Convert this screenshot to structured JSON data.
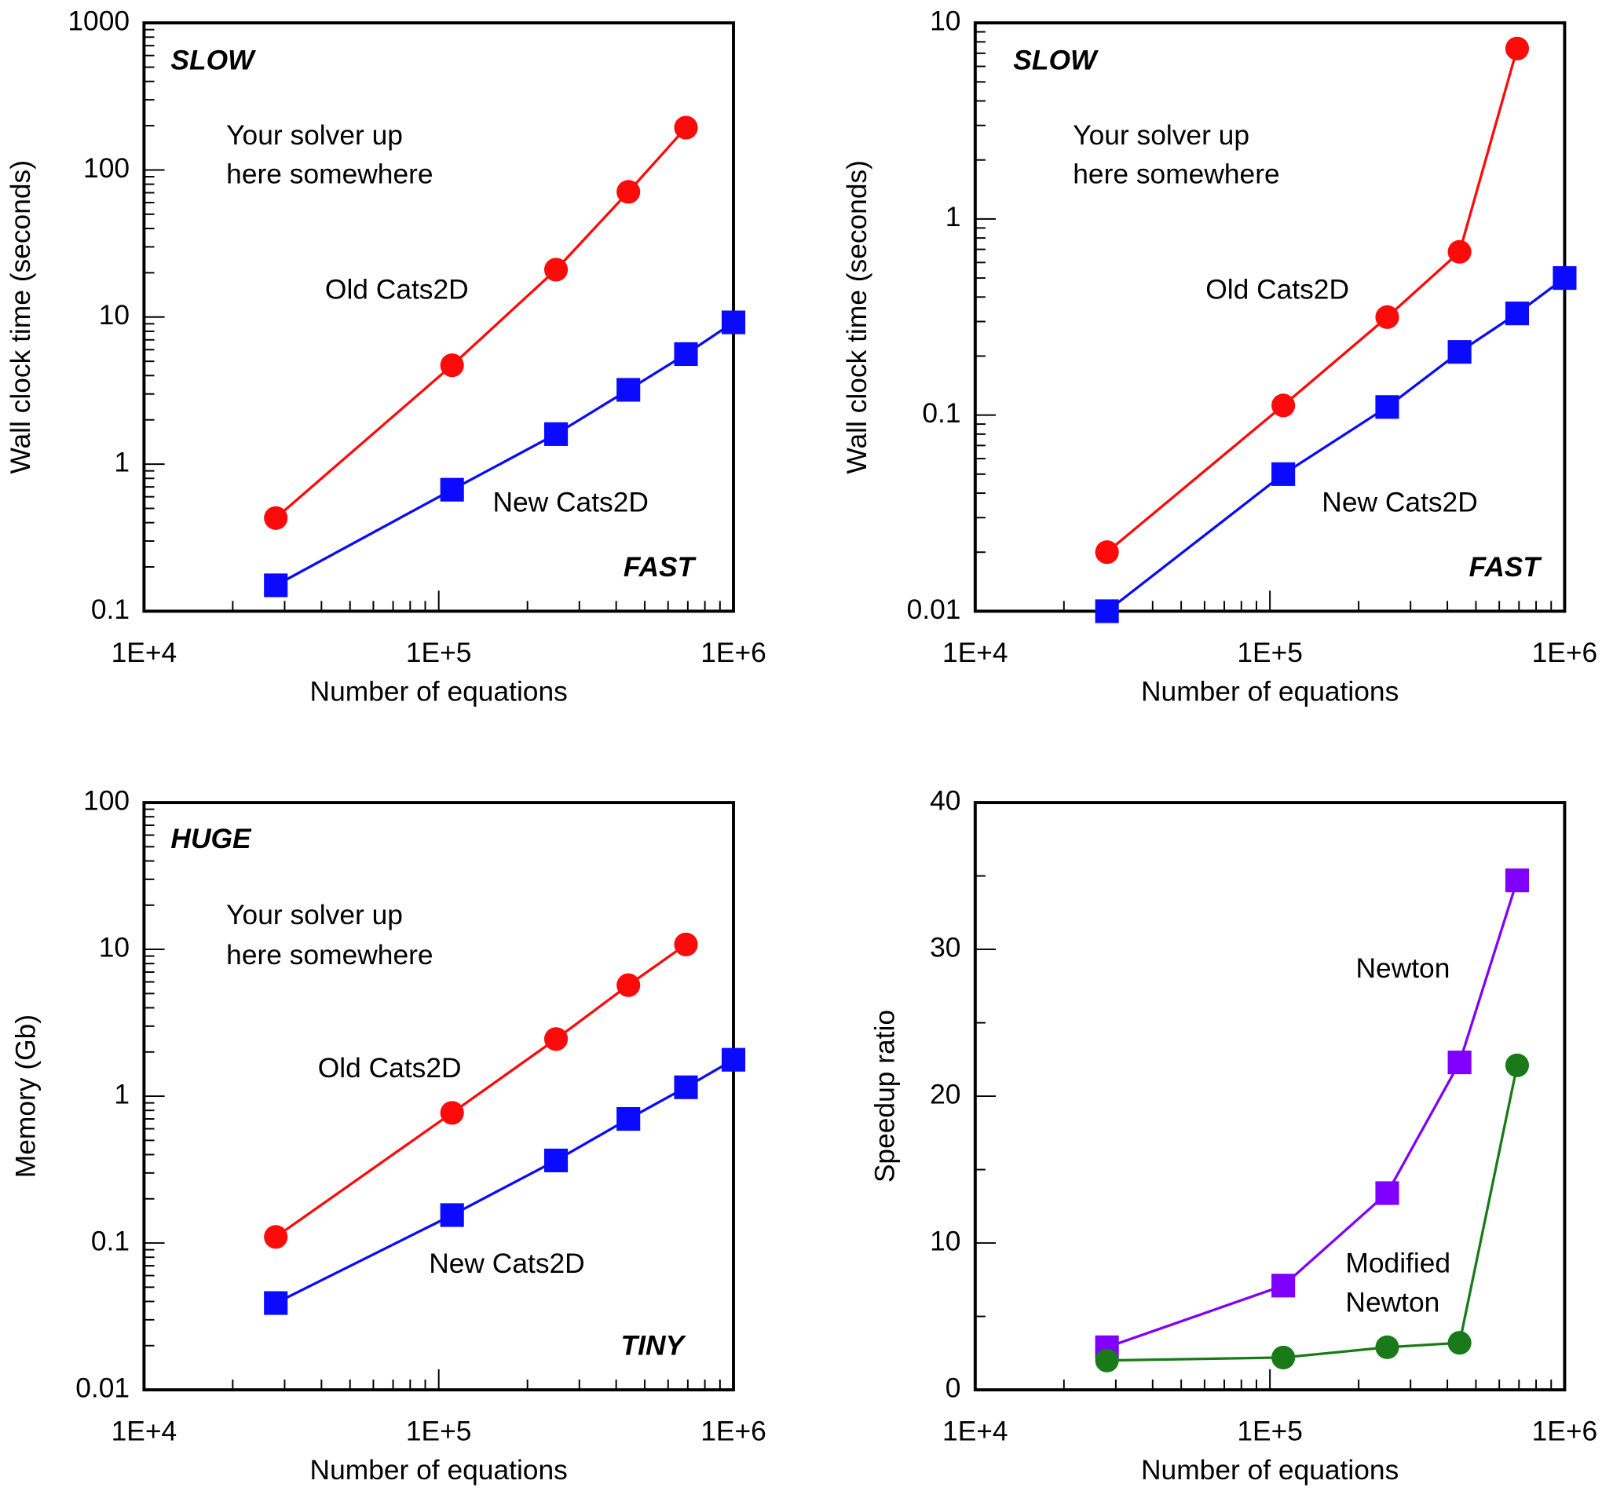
{
  "chart_data": [
    {
      "type": "line",
      "xlabel": "Number of equations",
      "ylabel": "Wall clock time (seconds)",
      "xscale": "log",
      "yscale": "log",
      "xlim": [
        10000,
        1000000
      ],
      "xticks": [
        {
          "value": 10000,
          "label": "1E+4"
        },
        {
          "value": 100000,
          "label": "1E+5"
        },
        {
          "value": 1000000,
          "label": "1E+6"
        }
      ],
      "ylim": [
        0.1,
        1000
      ],
      "yticks": [
        0.1,
        1,
        10,
        100,
        1000
      ],
      "annotations": [
        "SLOW",
        "FAST",
        "Your solver up",
        "here somewhere"
      ],
      "series": [
        {
          "name": "Old Cats2D",
          "color": "#ff0a0a",
          "marker": "circle",
          "x": [
            28000,
            111000,
            250000,
            440000,
            690000
          ],
          "values": [
            0.43,
            4.7,
            21,
            71,
            194
          ]
        },
        {
          "name": "New Cats2D",
          "color": "#0a0aff",
          "marker": "square",
          "x": [
            28000,
            111000,
            250000,
            440000,
            690000,
            1000000
          ],
          "values": [
            0.15,
            0.67,
            1.6,
            3.2,
            5.6,
            9.2
          ]
        }
      ]
    },
    {
      "type": "line",
      "xlabel": "Number of equations",
      "ylabel": "Wall clock time (seconds)",
      "xscale": "log",
      "yscale": "log",
      "xlim": [
        10000,
        1000000
      ],
      "xticks": [
        {
          "value": 10000,
          "label": "1E+4"
        },
        {
          "value": 100000,
          "label": "1E+5"
        },
        {
          "value": 1000000,
          "label": "1E+6"
        }
      ],
      "ylim": [
        0.01,
        10
      ],
      "yticks": [
        0.01,
        0.1,
        1,
        10
      ],
      "annotations": [
        "SLOW",
        "FAST",
        "Your solver up",
        "here somewhere"
      ],
      "series": [
        {
          "name": "Old Cats2D",
          "color": "#ff0a0a",
          "marker": "circle",
          "x": [
            28000,
            111000,
            250000,
            440000,
            690000
          ],
          "values": [
            0.02,
            0.112,
            0.316,
            0.68,
            7.4
          ]
        },
        {
          "name": "New Cats2D",
          "color": "#0a0aff",
          "marker": "square",
          "x": [
            28000,
            111000,
            250000,
            440000,
            690000,
            1000000
          ],
          "values": [
            0.01,
            0.05,
            0.11,
            0.21,
            0.33,
            0.5
          ]
        }
      ]
    },
    {
      "type": "line",
      "xlabel": "Number of equations",
      "ylabel": "Memory (Gb)",
      "xscale": "log",
      "yscale": "log",
      "xlim": [
        10000,
        1000000
      ],
      "xticks": [
        {
          "value": 10000,
          "label": "1E+4"
        },
        {
          "value": 100000,
          "label": "1E+5"
        },
        {
          "value": 1000000,
          "label": "1E+6"
        }
      ],
      "ylim": [
        0.01,
        100
      ],
      "yticks": [
        0.01,
        0.1,
        1,
        10,
        100
      ],
      "annotations": [
        "HUGE",
        "TINY",
        "Your solver up",
        "here somewhere"
      ],
      "series": [
        {
          "name": "Old Cats2D",
          "color": "#ff0a0a",
          "marker": "circle",
          "x": [
            28000,
            111000,
            250000,
            440000,
            690000
          ],
          "values": [
            0.11,
            0.77,
            2.45,
            5.7,
            10.8
          ]
        },
        {
          "name": "New Cats2D",
          "color": "#0a0aff",
          "marker": "square",
          "x": [
            28000,
            111000,
            250000,
            440000,
            690000,
            1000000
          ],
          "values": [
            0.039,
            0.155,
            0.365,
            0.7,
            1.15,
            1.77
          ]
        }
      ]
    },
    {
      "type": "line",
      "xlabel": "Number of equations",
      "ylabel": "Speedup ratio",
      "xscale": "log",
      "yscale": "linear",
      "xlim": [
        10000,
        1000000
      ],
      "xticks": [
        {
          "value": 10000,
          "label": "1E+4"
        },
        {
          "value": 100000,
          "label": "1E+5"
        },
        {
          "value": 1000000,
          "label": "1E+6"
        }
      ],
      "ylim": [
        0,
        40
      ],
      "yticks": [
        0,
        10,
        20,
        30,
        40
      ],
      "annotations": [],
      "series": [
        {
          "name": "Newton",
          "color": "#8000ff",
          "marker": "square",
          "x": [
            28000,
            111000,
            250000,
            440000,
            690000
          ],
          "values": [
            2.9,
            7.1,
            13.4,
            22.3,
            34.7
          ]
        },
        {
          "name": "Modified Newton",
          "color": "#1a7a1a",
          "marker": "circle",
          "x": [
            28000,
            111000,
            250000,
            440000,
            690000
          ],
          "values": [
            2.0,
            2.2,
            2.9,
            3.2,
            22.1
          ]
        }
      ]
    }
  ]
}
